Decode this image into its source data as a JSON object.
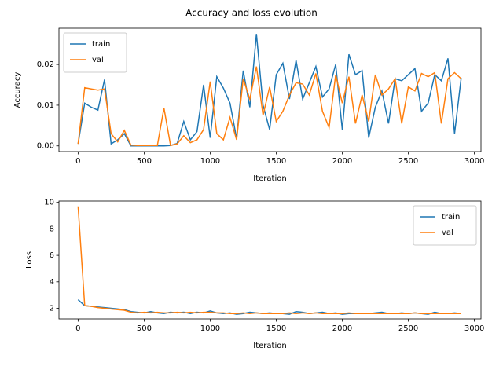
{
  "title": "Accuracy and loss evolution",
  "chart_data": [
    {
      "type": "line",
      "xlabel": "Iteration",
      "ylabel": "Accuracy",
      "legend": "upper left",
      "x": [
        0,
        50,
        100,
        150,
        200,
        250,
        300,
        350,
        400,
        450,
        500,
        550,
        600,
        650,
        700,
        750,
        800,
        850,
        900,
        950,
        1000,
        1050,
        1100,
        1150,
        1200,
        1250,
        1300,
        1350,
        1400,
        1450,
        1500,
        1550,
        1600,
        1650,
        1700,
        1750,
        1800,
        1850,
        1900,
        1950,
        2000,
        2050,
        2100,
        2150,
        2200,
        2250,
        2300,
        2350,
        2400,
        2450,
        2500,
        2550,
        2600,
        2650,
        2700,
        2750,
        2800,
        2850,
        2900
      ],
      "xlim": [
        -145,
        3050
      ],
      "xticks": [
        0,
        500,
        1000,
        1500,
        2000,
        2500,
        3000
      ],
      "ylim": [
        -0.0014,
        0.0289
      ],
      "yticks": [
        {
          "value": 0,
          "label": "0.00"
        },
        {
          "value": 0.01,
          "label": "0.01"
        },
        {
          "value": 0.02,
          "label": "0.02"
        }
      ],
      "series": [
        {
          "name": "train",
          "color": "#1f77b4",
          "values": [
            0.0005,
            0.0105,
            0.0095,
            0.0088,
            0.0163,
            0.0005,
            0.0015,
            0.003,
            0,
            0,
            0,
            0,
            0,
            0,
            0.0001,
            0.0006,
            0.006,
            0.0015,
            0.0035,
            0.015,
            0.002,
            0.017,
            0.0142,
            0.0105,
            0.0018,
            0.0185,
            0.0095,
            0.0275,
            0.01,
            0.004,
            0.0175,
            0.0203,
            0.0115,
            0.021,
            0.0115,
            0.0155,
            0.0195,
            0.012,
            0.014,
            0.02,
            0.004,
            0.0225,
            0.0175,
            0.0185,
            0.002,
            0.0095,
            0.0135,
            0.0055,
            0.0165,
            0.016,
            0.0175,
            0.019,
            0.0085,
            0.0105,
            0.0175,
            0.016,
            0.0215,
            0.003,
            0.0167
          ]
        },
        {
          "name": "val",
          "color": "#ff7f0e",
          "values": [
            0.0005,
            0.0143,
            0.014,
            0.0137,
            0.014,
            0.003,
            0.001,
            0.0038,
            0.0002,
            0.0001,
            0.0001,
            0.0001,
            0.0001,
            0.0093,
            0.0001,
            0.0005,
            0.0025,
            0.0008,
            0.0015,
            0.004,
            0.0158,
            0.003,
            0.0015,
            0.007,
            0.0015,
            0.0165,
            0.0115,
            0.0195,
            0.0075,
            0.0145,
            0.006,
            0.0085,
            0.0125,
            0.0155,
            0.0152,
            0.0125,
            0.0178,
            0.0085,
            0.0045,
            0.0175,
            0.0105,
            0.017,
            0.0055,
            0.0125,
            0.006,
            0.0175,
            0.0125,
            0.014,
            0.0165,
            0.0055,
            0.0145,
            0.0135,
            0.0178,
            0.017,
            0.018,
            0.0055,
            0.0165,
            0.018,
            0.0165
          ]
        }
      ]
    },
    {
      "type": "line",
      "xlabel": "Iteration",
      "ylabel": "Loss",
      "legend": "upper right",
      "x": [
        0,
        50,
        100,
        150,
        200,
        250,
        300,
        350,
        400,
        450,
        500,
        550,
        600,
        650,
        700,
        750,
        800,
        850,
        900,
        950,
        1000,
        1050,
        1100,
        1150,
        1200,
        1250,
        1300,
        1350,
        1400,
        1450,
        1500,
        1550,
        1600,
        1650,
        1700,
        1750,
        1800,
        1850,
        1900,
        1950,
        2000,
        2050,
        2100,
        2150,
        2200,
        2250,
        2300,
        2350,
        2400,
        2450,
        2500,
        2550,
        2600,
        2650,
        2700,
        2750,
        2800,
        2850,
        2900
      ],
      "xlim": [
        -145,
        3050
      ],
      "xticks": [
        0,
        500,
        1000,
        1500,
        2000,
        2500,
        3000
      ],
      "ylim": [
        1.2,
        10.1
      ],
      "yticks": [
        2,
        4,
        6,
        8,
        10
      ],
      "series": [
        {
          "name": "train",
          "color": "#1f77b4",
          "values": [
            2.65,
            2.2,
            2.15,
            2.1,
            2.05,
            2.0,
            1.95,
            1.9,
            1.75,
            1.7,
            1.65,
            1.75,
            1.65,
            1.6,
            1.7,
            1.65,
            1.7,
            1.6,
            1.7,
            1.65,
            1.8,
            1.65,
            1.6,
            1.65,
            1.55,
            1.6,
            1.7,
            1.65,
            1.6,
            1.65,
            1.6,
            1.6,
            1.55,
            1.75,
            1.7,
            1.6,
            1.65,
            1.7,
            1.6,
            1.65,
            1.55,
            1.6,
            1.6,
            1.6,
            1.6,
            1.65,
            1.7,
            1.6,
            1.6,
            1.65,
            1.6,
            1.65,
            1.6,
            1.55,
            1.7,
            1.6,
            1.6,
            1.65,
            1.6
          ]
        },
        {
          "name": "val",
          "color": "#ff7f0e",
          "values": [
            9.7,
            2.2,
            2.15,
            2.05,
            2.0,
            1.95,
            1.9,
            1.85,
            1.7,
            1.65,
            1.7,
            1.65,
            1.7,
            1.65,
            1.65,
            1.7,
            1.65,
            1.7,
            1.65,
            1.7,
            1.7,
            1.65,
            1.65,
            1.6,
            1.6,
            1.65,
            1.6,
            1.65,
            1.6,
            1.6,
            1.6,
            1.6,
            1.65,
            1.6,
            1.65,
            1.6,
            1.65,
            1.6,
            1.6,
            1.6,
            1.6,
            1.65,
            1.6,
            1.6,
            1.6,
            1.6,
            1.6,
            1.6,
            1.6,
            1.6,
            1.6,
            1.65,
            1.6,
            1.6,
            1.6,
            1.6,
            1.6,
            1.6,
            1.6
          ]
        }
      ]
    }
  ]
}
